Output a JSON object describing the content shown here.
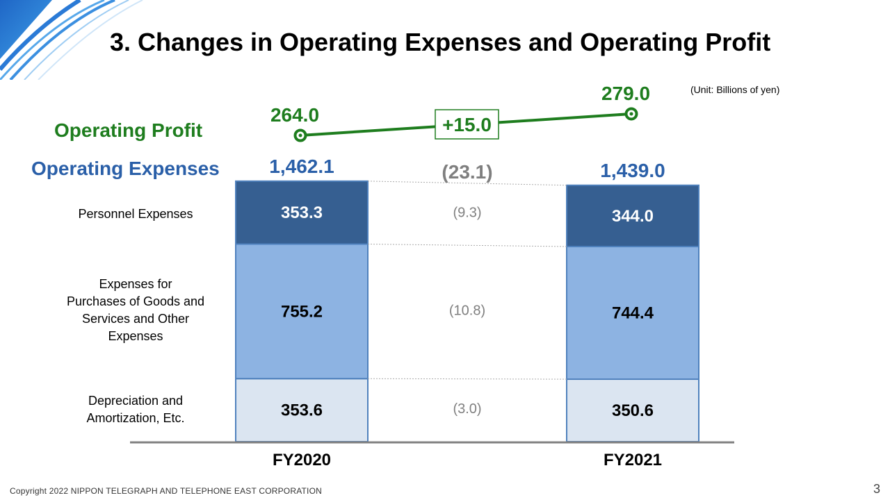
{
  "slide": {
    "title": "3. Changes in Operating Expenses and Operating Profit",
    "unit": "(Unit: Billions of yen)",
    "footer": "Copyright 2022 NIPPON TELEGRAPH AND TELEPHONE EAST CORPORATION",
    "page_number": "3"
  },
  "labels": {
    "operating_profit": "Operating Profit",
    "operating_expenses": "Operating Expenses",
    "personnel": "Personnel Expenses",
    "purchases_lines": [
      "Expenses for",
      "Purchases of Goods and",
      "Services and Other",
      "Expenses"
    ],
    "depreciation_lines": [
      "Depreciation and",
      "Amortization, Etc."
    ]
  },
  "colors": {
    "profit_green": "#1e7d1e",
    "expense_blue": "#2a5fa8",
    "personnel": "#365f91",
    "purchases": "#8db3e2",
    "depreciation": "#dbe5f1",
    "bar_border": "#4f81bd",
    "change_gray": "#7f7f7f",
    "axis": "#808080"
  },
  "chart_data": {
    "type": "bar",
    "stacked": true,
    "categories": [
      "FY2020",
      "FY2021"
    ],
    "series": [
      {
        "name": "Depreciation and Amortization, Etc.",
        "values": [
          353.6,
          350.6
        ],
        "labels": [
          "353.6",
          "350.6"
        ],
        "change_label": "(3.0)"
      },
      {
        "name": "Expenses for Purchases of Goods and Services and Other Expenses",
        "values": [
          755.2,
          744.4
        ],
        "labels": [
          "755.2",
          "744.4"
        ],
        "change_label": "(10.8)"
      },
      {
        "name": "Personnel Expenses",
        "values": [
          353.3,
          344.0
        ],
        "labels": [
          "353.3",
          "344.0"
        ],
        "change_label": "(9.3)"
      }
    ],
    "totals": {
      "values": [
        1462.1,
        1439.0
      ],
      "labels": [
        "1,462.1",
        "1,439.0"
      ],
      "change_label": "(23.1)"
    },
    "operating_profit": {
      "values": [
        264.0,
        279.0
      ],
      "labels": [
        "264.0",
        "279.0"
      ],
      "change_label": "+15.0"
    }
  }
}
